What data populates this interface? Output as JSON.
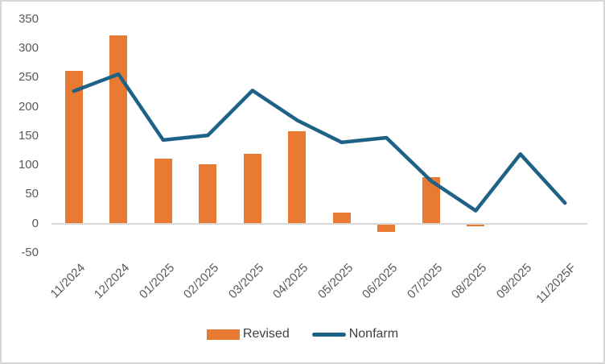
{
  "chart_data": {
    "type": "combo",
    "categories": [
      "11/2024",
      "12/2024",
      "01/2025",
      "02/2025",
      "03/2025",
      "04/2025",
      "05/2025",
      "06/2025",
      "07/2025",
      "08/2025",
      "09/2025",
      "11/2025F"
    ],
    "series": [
      {
        "name": "Revised",
        "type": "bar",
        "color": "#e87a31",
        "values": [
          261,
          323,
          111,
          102,
          120,
          158,
          19,
          -13,
          79,
          -4,
          null,
          null
        ]
      },
      {
        "name": "Nonfarm",
        "type": "line",
        "color": "#1e6387",
        "values": [
          227,
          256,
          143,
          151,
          228,
          177,
          139,
          147,
          73,
          22,
          119,
          35
        ]
      }
    ],
    "yticks": [
      350,
      300,
      250,
      200,
      150,
      100,
      50,
      0,
      -50
    ],
    "ylim": [
      -50,
      350
    ],
    "grid": false,
    "legend_position": "bottom",
    "axis_color": "#d9d9d9",
    "tick_label_color": "#595959",
    "legend_text_color": "#404040"
  }
}
